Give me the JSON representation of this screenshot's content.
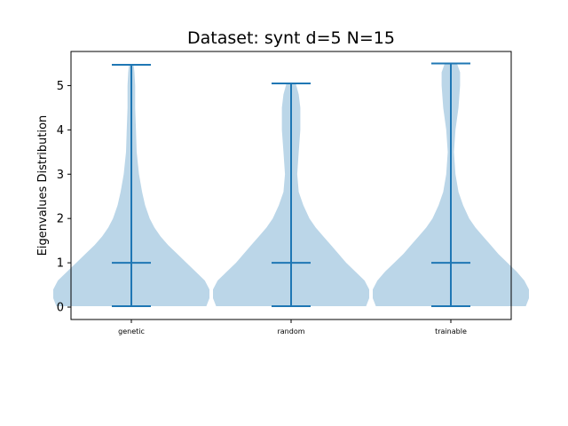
{
  "chart_data": {
    "type": "violin",
    "title": "Dataset: synt d=5 N=15",
    "xlabel": "",
    "ylabel": "Eigenvalues Distribution",
    "categories": [
      "genetic",
      "random",
      "trainable"
    ],
    "ylim": [
      -0.28,
      5.77
    ],
    "yticks": [
      "0",
      "1",
      "2",
      "3",
      "4",
      "5"
    ],
    "grid": false,
    "colors": {
      "body": "#1f77b4",
      "body_alpha": 0.3,
      "lines": "#1f77b4"
    },
    "series": [
      {
        "category": "genetic",
        "min": 0.02,
        "max": 5.47,
        "median": 1.0,
        "density": [
          [
            0.02,
            0.49
          ],
          [
            0.2,
            0.51
          ],
          [
            0.4,
            0.51
          ],
          [
            0.6,
            0.48
          ],
          [
            0.8,
            0.42
          ],
          [
            1.0,
            0.36
          ],
          [
            1.2,
            0.3
          ],
          [
            1.4,
            0.24
          ],
          [
            1.6,
            0.19
          ],
          [
            1.8,
            0.15
          ],
          [
            2.0,
            0.12
          ],
          [
            2.3,
            0.09
          ],
          [
            2.6,
            0.07
          ],
          [
            3.0,
            0.05
          ],
          [
            3.5,
            0.035
          ],
          [
            4.0,
            0.03
          ],
          [
            4.5,
            0.025
          ],
          [
            5.0,
            0.025
          ],
          [
            5.3,
            0.02
          ],
          [
            5.47,
            0.015
          ]
        ]
      },
      {
        "category": "random",
        "min": 0.02,
        "max": 5.05,
        "median": 1.0,
        "density": [
          [
            0.02,
            0.49
          ],
          [
            0.2,
            0.51
          ],
          [
            0.4,
            0.51
          ],
          [
            0.6,
            0.48
          ],
          [
            0.8,
            0.42
          ],
          [
            1.0,
            0.36
          ],
          [
            1.2,
            0.31
          ],
          [
            1.4,
            0.26
          ],
          [
            1.6,
            0.21
          ],
          [
            1.8,
            0.16
          ],
          [
            2.0,
            0.12
          ],
          [
            2.3,
            0.08
          ],
          [
            2.6,
            0.05
          ],
          [
            3.0,
            0.04
          ],
          [
            3.5,
            0.05
          ],
          [
            4.0,
            0.06
          ],
          [
            4.5,
            0.06
          ],
          [
            4.8,
            0.05
          ],
          [
            5.05,
            0.03
          ]
        ]
      },
      {
        "category": "trainable",
        "min": 0.02,
        "max": 5.5,
        "median": 1.0,
        "density": [
          [
            0.02,
            0.49
          ],
          [
            0.2,
            0.51
          ],
          [
            0.4,
            0.51
          ],
          [
            0.6,
            0.48
          ],
          [
            0.8,
            0.43
          ],
          [
            1.0,
            0.37
          ],
          [
            1.2,
            0.31
          ],
          [
            1.4,
            0.26
          ],
          [
            1.6,
            0.21
          ],
          [
            1.8,
            0.16
          ],
          [
            2.0,
            0.12
          ],
          [
            2.3,
            0.08
          ],
          [
            2.6,
            0.05
          ],
          [
            3.0,
            0.03
          ],
          [
            3.5,
            0.02
          ],
          [
            4.0,
            0.03
          ],
          [
            4.5,
            0.05
          ],
          [
            5.0,
            0.06
          ],
          [
            5.3,
            0.06
          ],
          [
            5.5,
            0.04
          ]
        ]
      }
    ]
  }
}
